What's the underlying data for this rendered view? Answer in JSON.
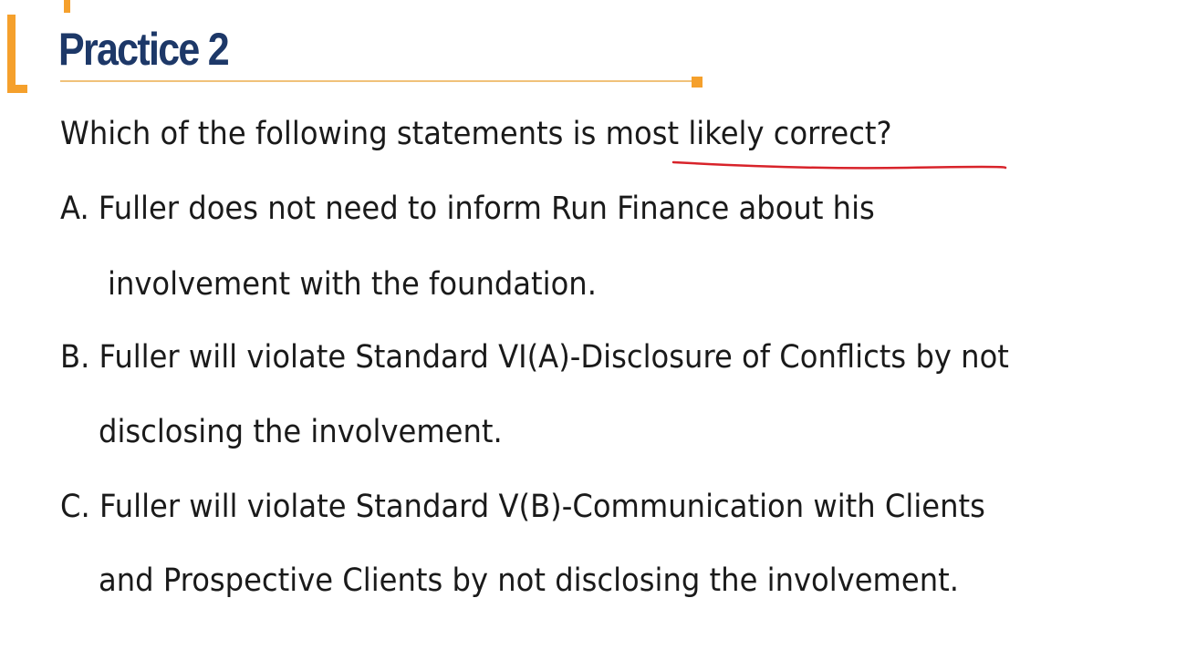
{
  "slide": {
    "title": "Practice 2",
    "question": "Which of the following statements is most likely correct?",
    "options": {
      "a_line1": "A. Fuller does not need to inform Run Finance about his",
      "a_line2": "involvement with the foundation.",
      "b_line1": "B. Fuller will violate Standard VI(A)-Disclosure of Conflicts by not",
      "b_line2": "disclosing the involvement.",
      "c_line1": "C. Fuller will violate Standard V(B)-Communication with Clients",
      "c_line2": "and Prospective Clients by not disclosing the involvement."
    }
  },
  "colors": {
    "accent": "#f5a02c",
    "title": "#1d3868",
    "annotation": "#d8232a",
    "text": "#1a1a1a"
  }
}
